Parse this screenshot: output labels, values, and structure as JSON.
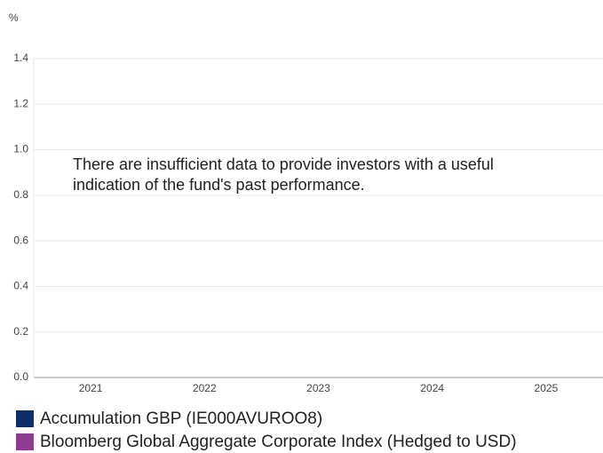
{
  "chart_data": {
    "type": "bar",
    "ylabel": "%",
    "categories": [
      "2021",
      "2022",
      "2023",
      "2024",
      "2025"
    ],
    "series": [
      {
        "name": "Accumulation GBP (IE000AVUROO8)",
        "color": "#0b2d6b",
        "values": [
          null,
          null,
          null,
          null,
          null
        ]
      },
      {
        "name": "Bloomberg Global Aggregate Corporate Index (Hedged to USD)",
        "color": "#8e3b91",
        "values": [
          null,
          null,
          null,
          null,
          null
        ]
      }
    ],
    "annotation": [
      "There are insufficient data to provide investors with a useful",
      "indication of the fund's past performance."
    ],
    "ylim": [
      0,
      1.4
    ],
    "yticks": [
      {
        "value": 0,
        "label": "0.0"
      },
      0.2,
      0.4,
      0.6,
      0.8,
      {
        "value": 1,
        "label": "1.0"
      },
      1.2,
      1.4
    ],
    "grid": true
  }
}
